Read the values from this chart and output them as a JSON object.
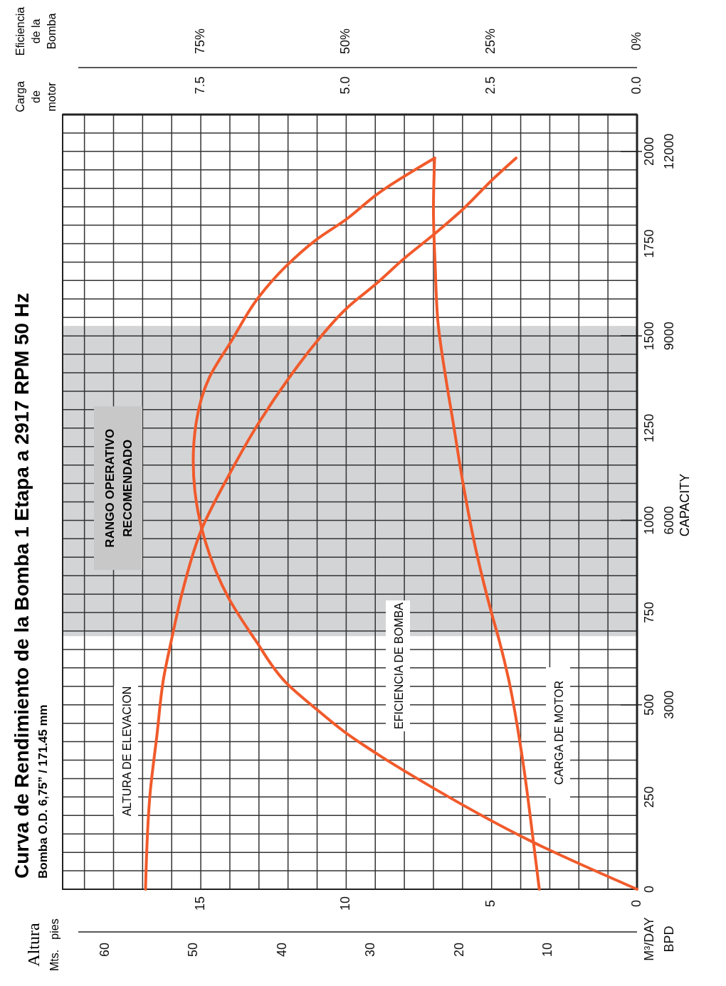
{
  "chart_data": [
    {
      "type": "line",
      "title": "Curva de Rendimiento de la Bomba 1 Etapa a 2917 RPM 50 Hz",
      "subtitle": "Bomba O.D. 6,75” / 171.45 mm",
      "ylabel": "M³/DAY",
      "y2label": "BPD",
      "x2label": "pies",
      "annotations": [
        "CAPACITY",
        "Altura",
        "Mts."
      ],
      "ylim": [
        0,
        2100
      ],
      "yticks": [
        0,
        {
          "value": 50,
          "label": null
        },
        {
          "value": 100,
          "label": null
        },
        {
          "value": 150,
          "label": null
        },
        {
          "value": 200,
          "label": null
        },
        250,
        {
          "value": 300,
          "label": null
        },
        {
          "value": 350,
          "label": null
        },
        {
          "value": 400,
          "label": null
        },
        {
          "value": 450,
          "label": null
        },
        500,
        {
          "value": 550,
          "label": null
        },
        {
          "value": 600,
          "label": null
        },
        {
          "value": 650,
          "label": null
        },
        {
          "value": 700,
          "label": null
        },
        750,
        {
          "value": 800,
          "label": null
        },
        {
          "value": 850,
          "label": null
        },
        {
          "value": 900,
          "label": null
        },
        {
          "value": 950,
          "label": null
        },
        1000,
        {
          "value": 1050,
          "label": null
        },
        {
          "value": 1100,
          "label": null
        },
        {
          "value": 1150,
          "label": null
        },
        {
          "value": 1200,
          "label": null
        },
        1250,
        {
          "value": 1300,
          "label": null
        },
        {
          "value": 1350,
          "label": null
        },
        {
          "value": 1400,
          "label": null
        },
        {
          "value": 1450,
          "label": null
        },
        1500,
        {
          "value": 1550,
          "label": null
        },
        {
          "value": 1600,
          "label": null
        },
        {
          "value": 1650,
          "label": null
        },
        {
          "value": 1700,
          "label": null
        },
        1750,
        {
          "value": 1800,
          "label": null
        },
        {
          "value": 1850,
          "label": null
        },
        {
          "value": 1900,
          "label": null
        },
        {
          "value": 1950,
          "label": null
        },
        2000,
        {
          "value": 2050,
          "label": null
        }
      ],
      "y2lim": [
        0,
        12600
      ],
      "y2ticks": [
        3000,
        6000,
        9000,
        12000
      ],
      "xlim": [
        19.75,
        0
      ],
      "xticks": [
        0,
        {
          "value": 1,
          "label": null
        },
        {
          "value": 2,
          "label": null
        },
        {
          "value": 3,
          "label": null
        },
        {
          "value": 4,
          "label": null
        },
        5,
        {
          "value": 6,
          "label": null
        },
        {
          "value": 7,
          "label": null
        },
        {
          "value": 8,
          "label": null
        },
        {
          "value": 9,
          "label": null
        },
        10,
        {
          "value": 11,
          "label": null
        },
        {
          "value": 12,
          "label": null
        },
        {
          "value": 13,
          "label": null
        },
        {
          "value": 14,
          "label": null
        },
        15,
        {
          "value": 16,
          "label": null
        },
        {
          "value": 17,
          "label": null
        },
        {
          "value": 18,
          "label": null
        },
        {
          "value": 19,
          "label": null
        }
      ],
      "x2lim": [
        64.8,
        0
      ],
      "x2ticks": [
        10,
        20,
        30,
        40,
        50,
        60
      ],
      "grid": true,
      "legend": false,
      "line_style": "solid",
      "bands": [
        {
          "axis": "y",
          "from": 686,
          "to": 1527,
          "label": "RANGO OPERATIVO RECOMENDADO",
          "color": "#d3d4d6"
        }
      ],
      "series": [
        {
          "name": "ALTURA DE ELEVACION",
          "color": "#f15a2b",
          "values": [
            0,
            262,
            416,
            571,
            675,
            810,
            976,
            1120,
            1265,
            1388,
            1482,
            1575,
            1642,
            1711,
            1776,
            1843,
            1926,
            1982
          ],
          "x": [
            16.9,
            16.74,
            16.51,
            16.28,
            16.01,
            15.62,
            14.97,
            14.05,
            13.0,
            11.95,
            11.04,
            9.98,
            8.96,
            7.99,
            6.97,
            5.99,
            4.94,
            4.16
          ]
        }
      ]
    },
    {
      "type": "line",
      "annotations": [
        "Carga de motor"
      ],
      "x2label": "Eficiencia de la Bomba",
      "ylim": [
        0,
        2100
      ],
      "tick_labels": "x",
      "xlim": [
        9.875,
        0
      ],
      "xticks": [
        {
          "value": 0,
          "label": "0.0"
        },
        {
          "value": 2.5,
          "label": "2.5"
        },
        {
          "value": 5,
          "label": "5.0"
        },
        {
          "value": 7.5,
          "label": "7.5"
        }
      ],
      "x2lim": [
        98.75,
        0
      ],
      "x2ticks": [
        {
          "value": 0,
          "label": "0%"
        },
        {
          "value": 25,
          "label": "25%"
        },
        {
          "value": 50,
          "label": "50%"
        },
        {
          "value": 75,
          "label": "75%"
        }
      ],
      "legend": false,
      "line_style": "solid",
      "series": [
        {
          "name": "EFICIENCIA DE BOMBA",
          "color": "#f15a2b",
          "axis": "x2",
          "values": [
            0,
            127,
            303,
            360,
            422,
            484,
            561,
            675,
            789,
            976,
            1078,
            1161,
            1264,
            1388,
            1482,
            1606,
            1688,
            1760,
            1817,
            1884,
            1982
          ],
          "x": [
            0,
            17.8,
            38.1,
            44.0,
            49.9,
            54.8,
            60.4,
            65.6,
            70.2,
            74.8,
            76.0,
            76.3,
            75.8,
            73.5,
            69.9,
            65.0,
            60.4,
            55.2,
            49.9,
            44.7,
            34.8
          ]
        },
        {
          "name": "CARGA DE MOTOR",
          "color": "#f15a2b",
          "values": [
            0,
            127,
            365,
            571,
            675,
            748,
            913,
            1099,
            1264,
            1388,
            1533,
            1689,
            1843,
            1982
          ],
          "x": [
            1.68,
            1.78,
            1.98,
            2.21,
            2.37,
            2.5,
            2.76,
            2.99,
            3.16,
            3.29,
            3.42,
            3.47,
            3.5,
            3.48
          ]
        }
      ]
    }
  ]
}
